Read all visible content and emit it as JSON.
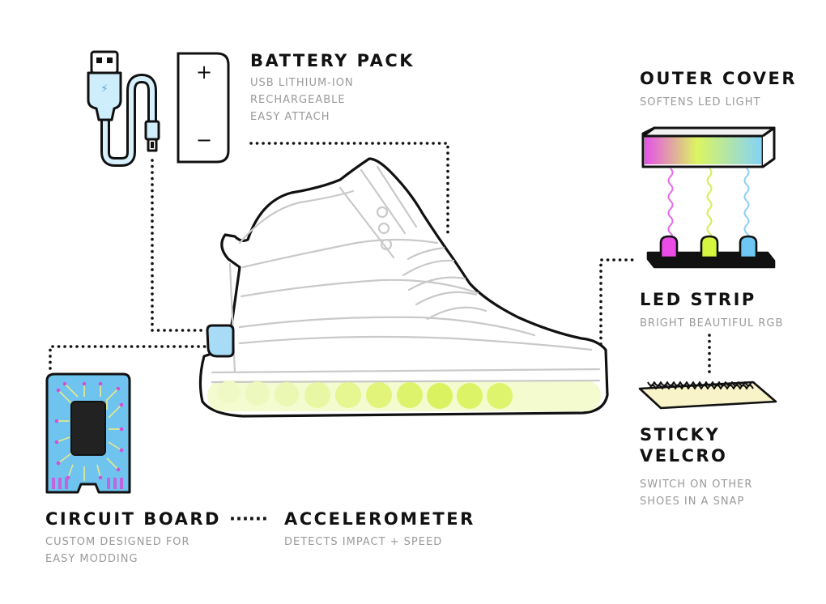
{
  "battery_pack": {
    "title": "BATTERY PACK",
    "lines": [
      "USB LITHIUM-ION",
      "RECHARGEABLE",
      "EASY ATTACH"
    ]
  },
  "outer_cover": {
    "title": "OUTER COVER",
    "lines": [
      "SOFTENS LED LIGHT"
    ]
  },
  "led_strip": {
    "title": "LED STRIP",
    "lines": [
      "BRIGHT BEAUTIFUL RGB"
    ]
  },
  "sticky_velcro": {
    "title_lines": [
      "STICKY",
      "VELCRO"
    ],
    "lines": [
      "SWITCH ON OTHER",
      "SHOES IN A SNAP"
    ]
  },
  "circuit_board": {
    "title": "CIRCUIT BOARD",
    "lines": [
      "CUSTOM DESIGNED FOR",
      "EASY MODDING"
    ]
  },
  "accelerometer": {
    "title": "ACCELEROMETER",
    "lines": [
      "DETECTS IMPACT + SPEED"
    ]
  },
  "connector": "······",
  "battery_symbols": {
    "plus": "+",
    "minus": "−"
  },
  "colors": {
    "outline": "#111111",
    "dotted": "#111111",
    "sole_glow": "#e5f96a",
    "led_pink": "#e94de6",
    "led_green": "#d6f53f",
    "led_blue": "#6cc7f2",
    "board_blue": "#6ec3ef",
    "chip": "#222222",
    "trace": "#e8e98a",
    "usb_blue": "#cfeefb",
    "velcro": "#f8f3c8",
    "title_text": "#111111",
    "subtitle_text": "#9a9a9a"
  }
}
